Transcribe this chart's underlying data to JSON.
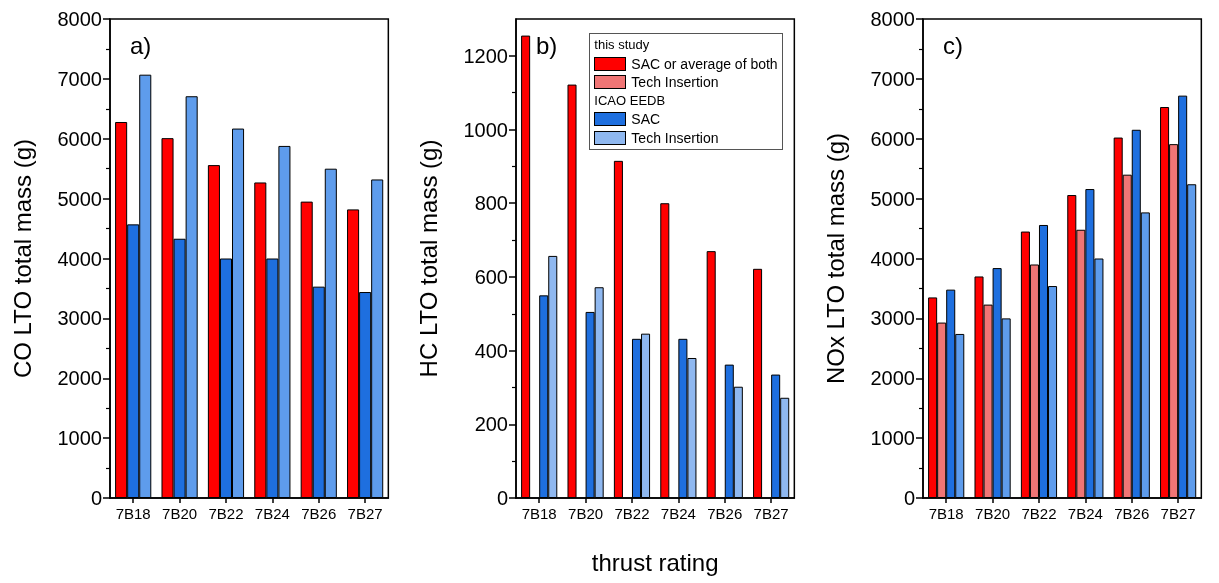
{
  "chart_data": [
    {
      "type": "bar",
      "categories": [
        "7B18",
        "7B20",
        "7B22",
        "7B24",
        "7B26",
        "7B27"
      ],
      "ylabel": "CO LTO total mass (g)",
      "ylim": [
        0,
        8000
      ],
      "yticks": [
        0,
        1000,
        2000,
        3000,
        4000,
        5000,
        6000,
        7000,
        8000
      ],
      "grid": false,
      "annotations": [
        "a)"
      ],
      "series": [
        {
          "color": "#ff0000",
          "values": [
            6280,
            6010,
            5560,
            5270,
            4950,
            4820
          ]
        },
        {
          "color": "#1e6fdf",
          "values": [
            4570,
            4330,
            4000,
            4000,
            3530,
            3440
          ]
        },
        {
          "color": "#5e9cec",
          "values": [
            7070,
            6710,
            6170,
            5880,
            5500,
            5320
          ]
        }
      ]
    },
    {
      "type": "bar",
      "categories": [
        "7B18",
        "7B20",
        "7B22",
        "7B24",
        "7B26",
        "7B27"
      ],
      "xlabel": "thrust rating",
      "ylabel": "HC LTO total mass (g)",
      "ylim": [
        0,
        1300
      ],
      "yticks": [
        0,
        200,
        400,
        600,
        800,
        1000,
        1200
      ],
      "grid": false,
      "legend": "top right",
      "legend_title": "this study",
      "annotations": [
        "b)",
        "ICAO EEDB"
      ],
      "series": [
        {
          "name": "SAC or average of both",
          "color": "#ff0000",
          "values": [
            1255,
            1122,
            915,
            800,
            670,
            622
          ]
        },
        {
          "name": "Tech Insertion",
          "color": "#f07575",
          "values": [
            null,
            null,
            null,
            null,
            null,
            null
          ]
        },
        {
          "name": "SAC",
          "color": "#1e6fdf",
          "values": [
            550,
            505,
            432,
            432,
            362,
            335
          ]
        },
        {
          "name": "Tech Insertion",
          "color": "#8fb8f0",
          "values": [
            657,
            572,
            446,
            380,
            302,
            272
          ]
        }
      ]
    },
    {
      "type": "bar",
      "categories": [
        "7B18",
        "7B20",
        "7B22",
        "7B24",
        "7B26",
        "7B27"
      ],
      "ylabel": "NOx LTO total mass (g)",
      "ylim": [
        0,
        8000
      ],
      "yticks": [
        0,
        1000,
        2000,
        3000,
        4000,
        5000,
        6000,
        7000,
        8000
      ],
      "grid": false,
      "annotations": [
        "c)"
      ],
      "series": [
        {
          "color": "#ff0000",
          "values": [
            3350,
            3700,
            4450,
            5060,
            6020,
            6530
          ]
        },
        {
          "color": "#f07575",
          "values": [
            2930,
            3230,
            3900,
            4480,
            5400,
            5910
          ]
        },
        {
          "color": "#1e6fdf",
          "values": [
            3480,
            3840,
            4560,
            5160,
            6150,
            6720
          ]
        },
        {
          "color": "#5e9cec",
          "values": [
            2740,
            3000,
            3540,
            4000,
            4770,
            5240
          ]
        }
      ]
    }
  ]
}
